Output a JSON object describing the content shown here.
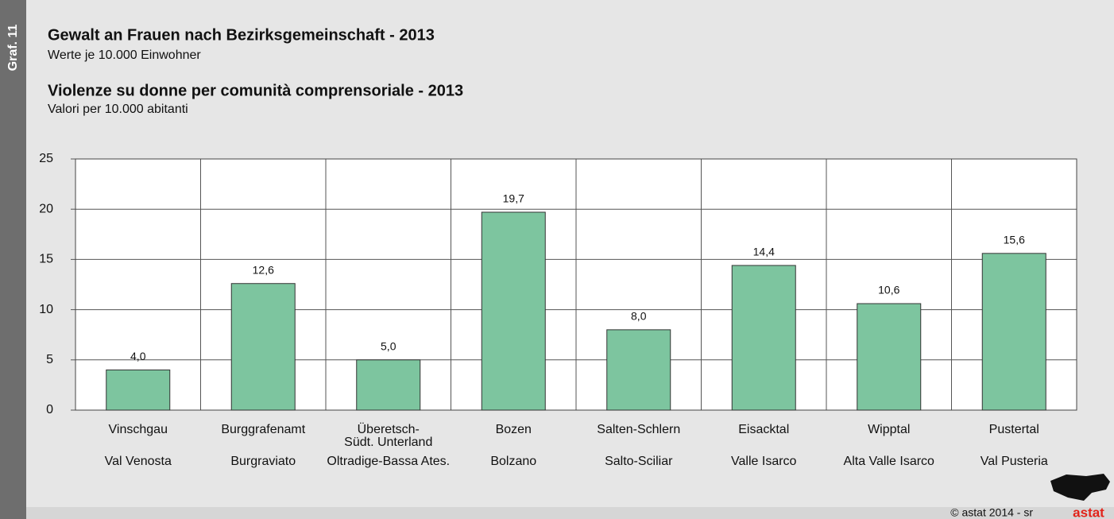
{
  "side_label": "Graf. 11",
  "chart_data": {
    "type": "bar",
    "title": "Gewalt an Frauen nach Bezirksgemeinschaft - 2013",
    "subtitle": "Werte je 10.000 Einwohner",
    "title_it": "Violenze su donne per comunità comprensoriale - 2013",
    "subtitle_it": "Valori per 10.000 abitanti",
    "categories": [
      "Vinschgau",
      "Burggrafenamt",
      [
        "Überetsch-",
        "Südt. Unterland"
      ],
      "Bozen",
      "Salten-Schlern",
      "Eisacktal",
      "Wipptal",
      "Pustertal"
    ],
    "categories_it": [
      "Val Venosta",
      "Burgraviato",
      "Oltradige-Bassa Ates.",
      "Bolzano",
      "Salto-Sciliar",
      "Valle Isarco",
      "Alta Valle Isarco",
      "Val Pusteria"
    ],
    "values": [
      4.0,
      12.6,
      5.0,
      19.7,
      8.0,
      14.4,
      10.6,
      15.6
    ],
    "value_labels": [
      "4,0",
      "12,6",
      "5,0",
      "19,7",
      "8,0",
      "14,4",
      "10,6",
      "15,6"
    ],
    "color": "#7dc59f",
    "ylim": [
      0,
      25
    ],
    "yticks": [
      0,
      5,
      10,
      15,
      20,
      25
    ],
    "grid": true
  },
  "footer": {
    "credit": "© astat 2014 - sr",
    "logo": "astat"
  }
}
